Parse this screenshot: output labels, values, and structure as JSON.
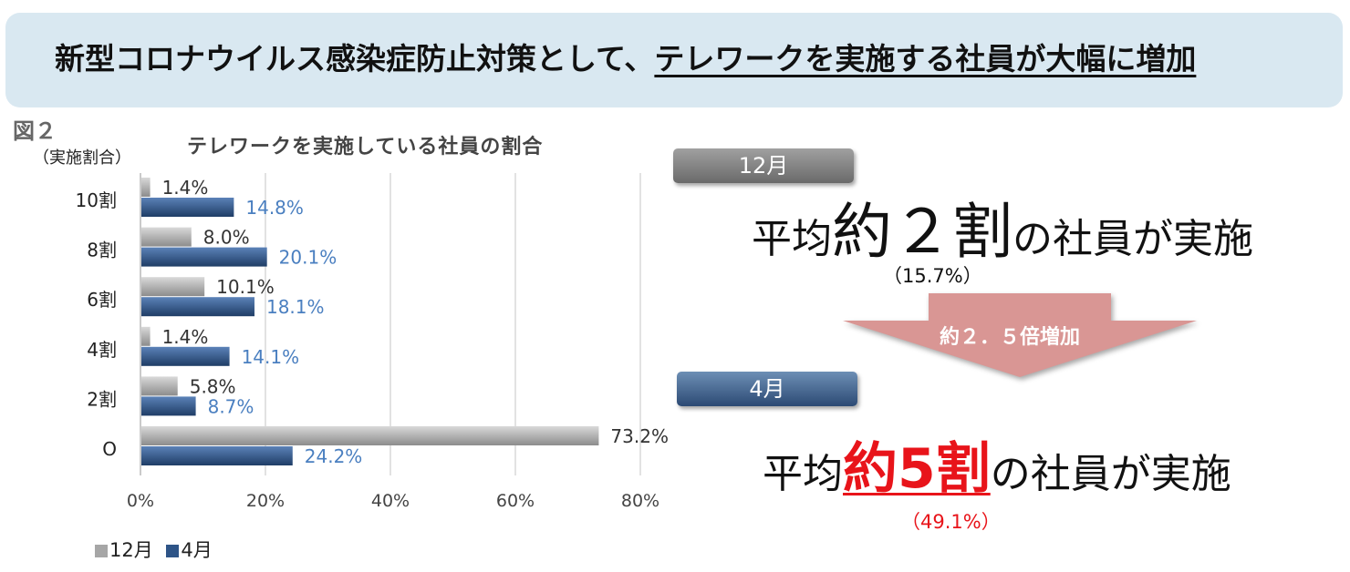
{
  "headline": {
    "text_plain": "新型コロナウイルス感染症防止対策として、",
    "text_underlined": "テレワークを実施する社員が大幅に増加"
  },
  "figure_label": "図２",
  "chart_data": {
    "type": "bar",
    "orientation": "horizontal",
    "title": "テレワークを実施している社員の割合",
    "ylabel": "（実施割合）",
    "categories": [
      "10割",
      "8割",
      "6割",
      "4割",
      "2割",
      "O"
    ],
    "series": [
      {
        "name": "12月",
        "color": "#a6a6a6",
        "values": [
          1.4,
          8.0,
          10.1,
          1.4,
          5.8,
          73.2
        ],
        "labels": [
          "1.4%",
          "8.0%",
          "10.1%",
          "1.4%",
          "5.8%",
          "73.2%"
        ],
        "label_color": "#333333"
      },
      {
        "name": "4月",
        "color": "#2e5487",
        "values": [
          14.8,
          20.1,
          18.1,
          14.1,
          8.7,
          24.2
        ],
        "labels": [
          "14.8%",
          "20.1%",
          "18.1%",
          "14.1%",
          "8.7%",
          "24.2%"
        ],
        "label_color": "#4a7fc0"
      }
    ],
    "xlim": [
      0,
      80
    ],
    "xticks": [
      "0%",
      "20%",
      "40%",
      "60%",
      "80%"
    ],
    "grid": true,
    "legend": "bottom-left"
  },
  "legend": {
    "dec": "12月",
    "apr": "4月"
  },
  "summary": {
    "dec_pill": "12月",
    "dec_prefix": "平均",
    "dec_emphasis": "約２割",
    "dec_suffix": "の社員が実施",
    "dec_sub": "（15.7%）",
    "arrow_text": "約２．５倍増加",
    "apr_pill": "4月",
    "apr_prefix": "平均",
    "apr_emphasis": "約5割",
    "apr_suffix": "の社員が実施",
    "apr_sub": "（49.1%）"
  },
  "colors": {
    "banner": "#d9e8f1",
    "dec": "#a6a6a6",
    "apr": "#2e5487",
    "accent_red": "#e8141a",
    "arrow": "#d99694"
  }
}
